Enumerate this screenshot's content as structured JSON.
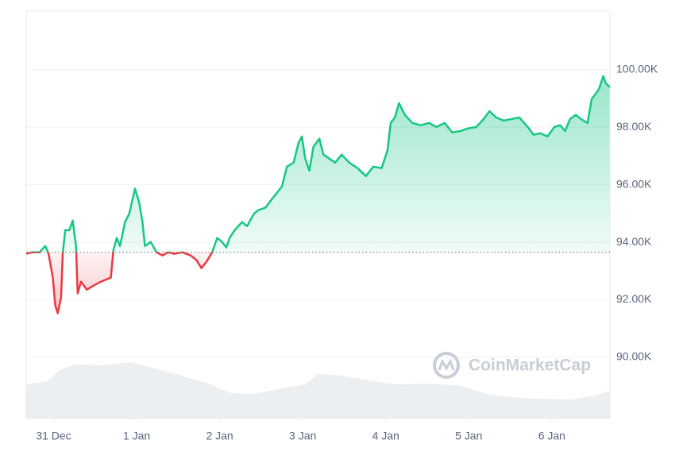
{
  "chart_data": {
    "type": "area",
    "watermark": "CoinMarketCap",
    "x": [
      -0.33,
      -0.26,
      -0.17,
      -0.1,
      -0.06,
      -0.01,
      0.02,
      0.05,
      0.09,
      0.11,
      0.14,
      0.19,
      0.23,
      0.27,
      0.29,
      0.33,
      0.4,
      0.48,
      0.57,
      0.69,
      0.72,
      0.76,
      0.8,
      0.86,
      0.91,
      0.98,
      1.03,
      1.07,
      1.1,
      1.17,
      1.24,
      1.31,
      1.38,
      1.45,
      1.55,
      1.65,
      1.72,
      1.78,
      1.84,
      1.91,
      1.97,
      2.03,
      2.08,
      2.12,
      2.18,
      2.27,
      2.33,
      2.41,
      2.46,
      2.55,
      2.65,
      2.75,
      2.81,
      2.89,
      2.95,
      2.99,
      3.03,
      3.08,
      3.13,
      3.2,
      3.25,
      3.32,
      3.39,
      3.47,
      3.56,
      3.66,
      3.76,
      3.85,
      3.95,
      4.02,
      4.06,
      4.11,
      4.16,
      4.23,
      4.32,
      4.42,
      4.52,
      4.61,
      4.71,
      4.8,
      4.9,
      4.99,
      5.09,
      5.18,
      5.25,
      5.33,
      5.42,
      5.52,
      5.61,
      5.71,
      5.78,
      5.86,
      5.95,
      6.03,
      6.1,
      6.16,
      6.22,
      6.29,
      6.35,
      6.43,
      6.48,
      6.53,
      6.57,
      6.62,
      6.65,
      6.7
    ],
    "values": [
      93600,
      93650,
      93650,
      93870,
      93600,
      92770,
      91800,
      91530,
      92080,
      93600,
      94420,
      94420,
      94760,
      93870,
      92220,
      92630,
      92350,
      92490,
      92630,
      92770,
      93730,
      94150,
      93870,
      94700,
      94980,
      95860,
      95390,
      94700,
      93870,
      94010,
      93650,
      93540,
      93650,
      93600,
      93650,
      93540,
      93380,
      93100,
      93320,
      93650,
      94150,
      94010,
      93820,
      94150,
      94420,
      94700,
      94560,
      94980,
      95110,
      95200,
      95580,
      95940,
      96630,
      96770,
      97460,
      97680,
      96910,
      96490,
      97320,
      97600,
      97050,
      96910,
      96770,
      97050,
      96770,
      96580,
      96300,
      96630,
      96580,
      97180,
      98150,
      98340,
      98840,
      98430,
      98150,
      98070,
      98150,
      98010,
      98150,
      97820,
      97870,
      97960,
      98010,
      98290,
      98560,
      98340,
      98230,
      98290,
      98340,
      98010,
      97740,
      97790,
      97680,
      98010,
      98070,
      97870,
      98290,
      98430,
      98290,
      98150,
      98980,
      99170,
      99340,
      99780,
      99530,
      99390
    ],
    "color_up": "#16c784",
    "color_down": "#ea3943",
    "baseline": 93650,
    "xlim": [
      -0.33,
      6.7
    ],
    "xticks": [
      {
        "value": 0,
        "label": "31 Dec"
      },
      {
        "value": 1,
        "label": "1 Jan"
      },
      {
        "value": 2,
        "label": "2 Jan"
      },
      {
        "value": 3,
        "label": "3 Jan"
      },
      {
        "value": 4,
        "label": "4 Jan"
      },
      {
        "value": 5,
        "label": "5 Jan"
      },
      {
        "value": 6,
        "label": "6 Jan"
      }
    ],
    "ylim": [
      87870,
      102040
    ],
    "yticks": [
      {
        "value": 90000,
        "label": "90.00K"
      },
      {
        "value": 92000,
        "label": "92.00K"
      },
      {
        "value": 94000,
        "label": "94.00K"
      },
      {
        "value": 96000,
        "label": "96.00K"
      },
      {
        "value": 98000,
        "label": "98.00K"
      },
      {
        "value": 100000,
        "label": "100.00K"
      }
    ],
    "grid": true
  }
}
